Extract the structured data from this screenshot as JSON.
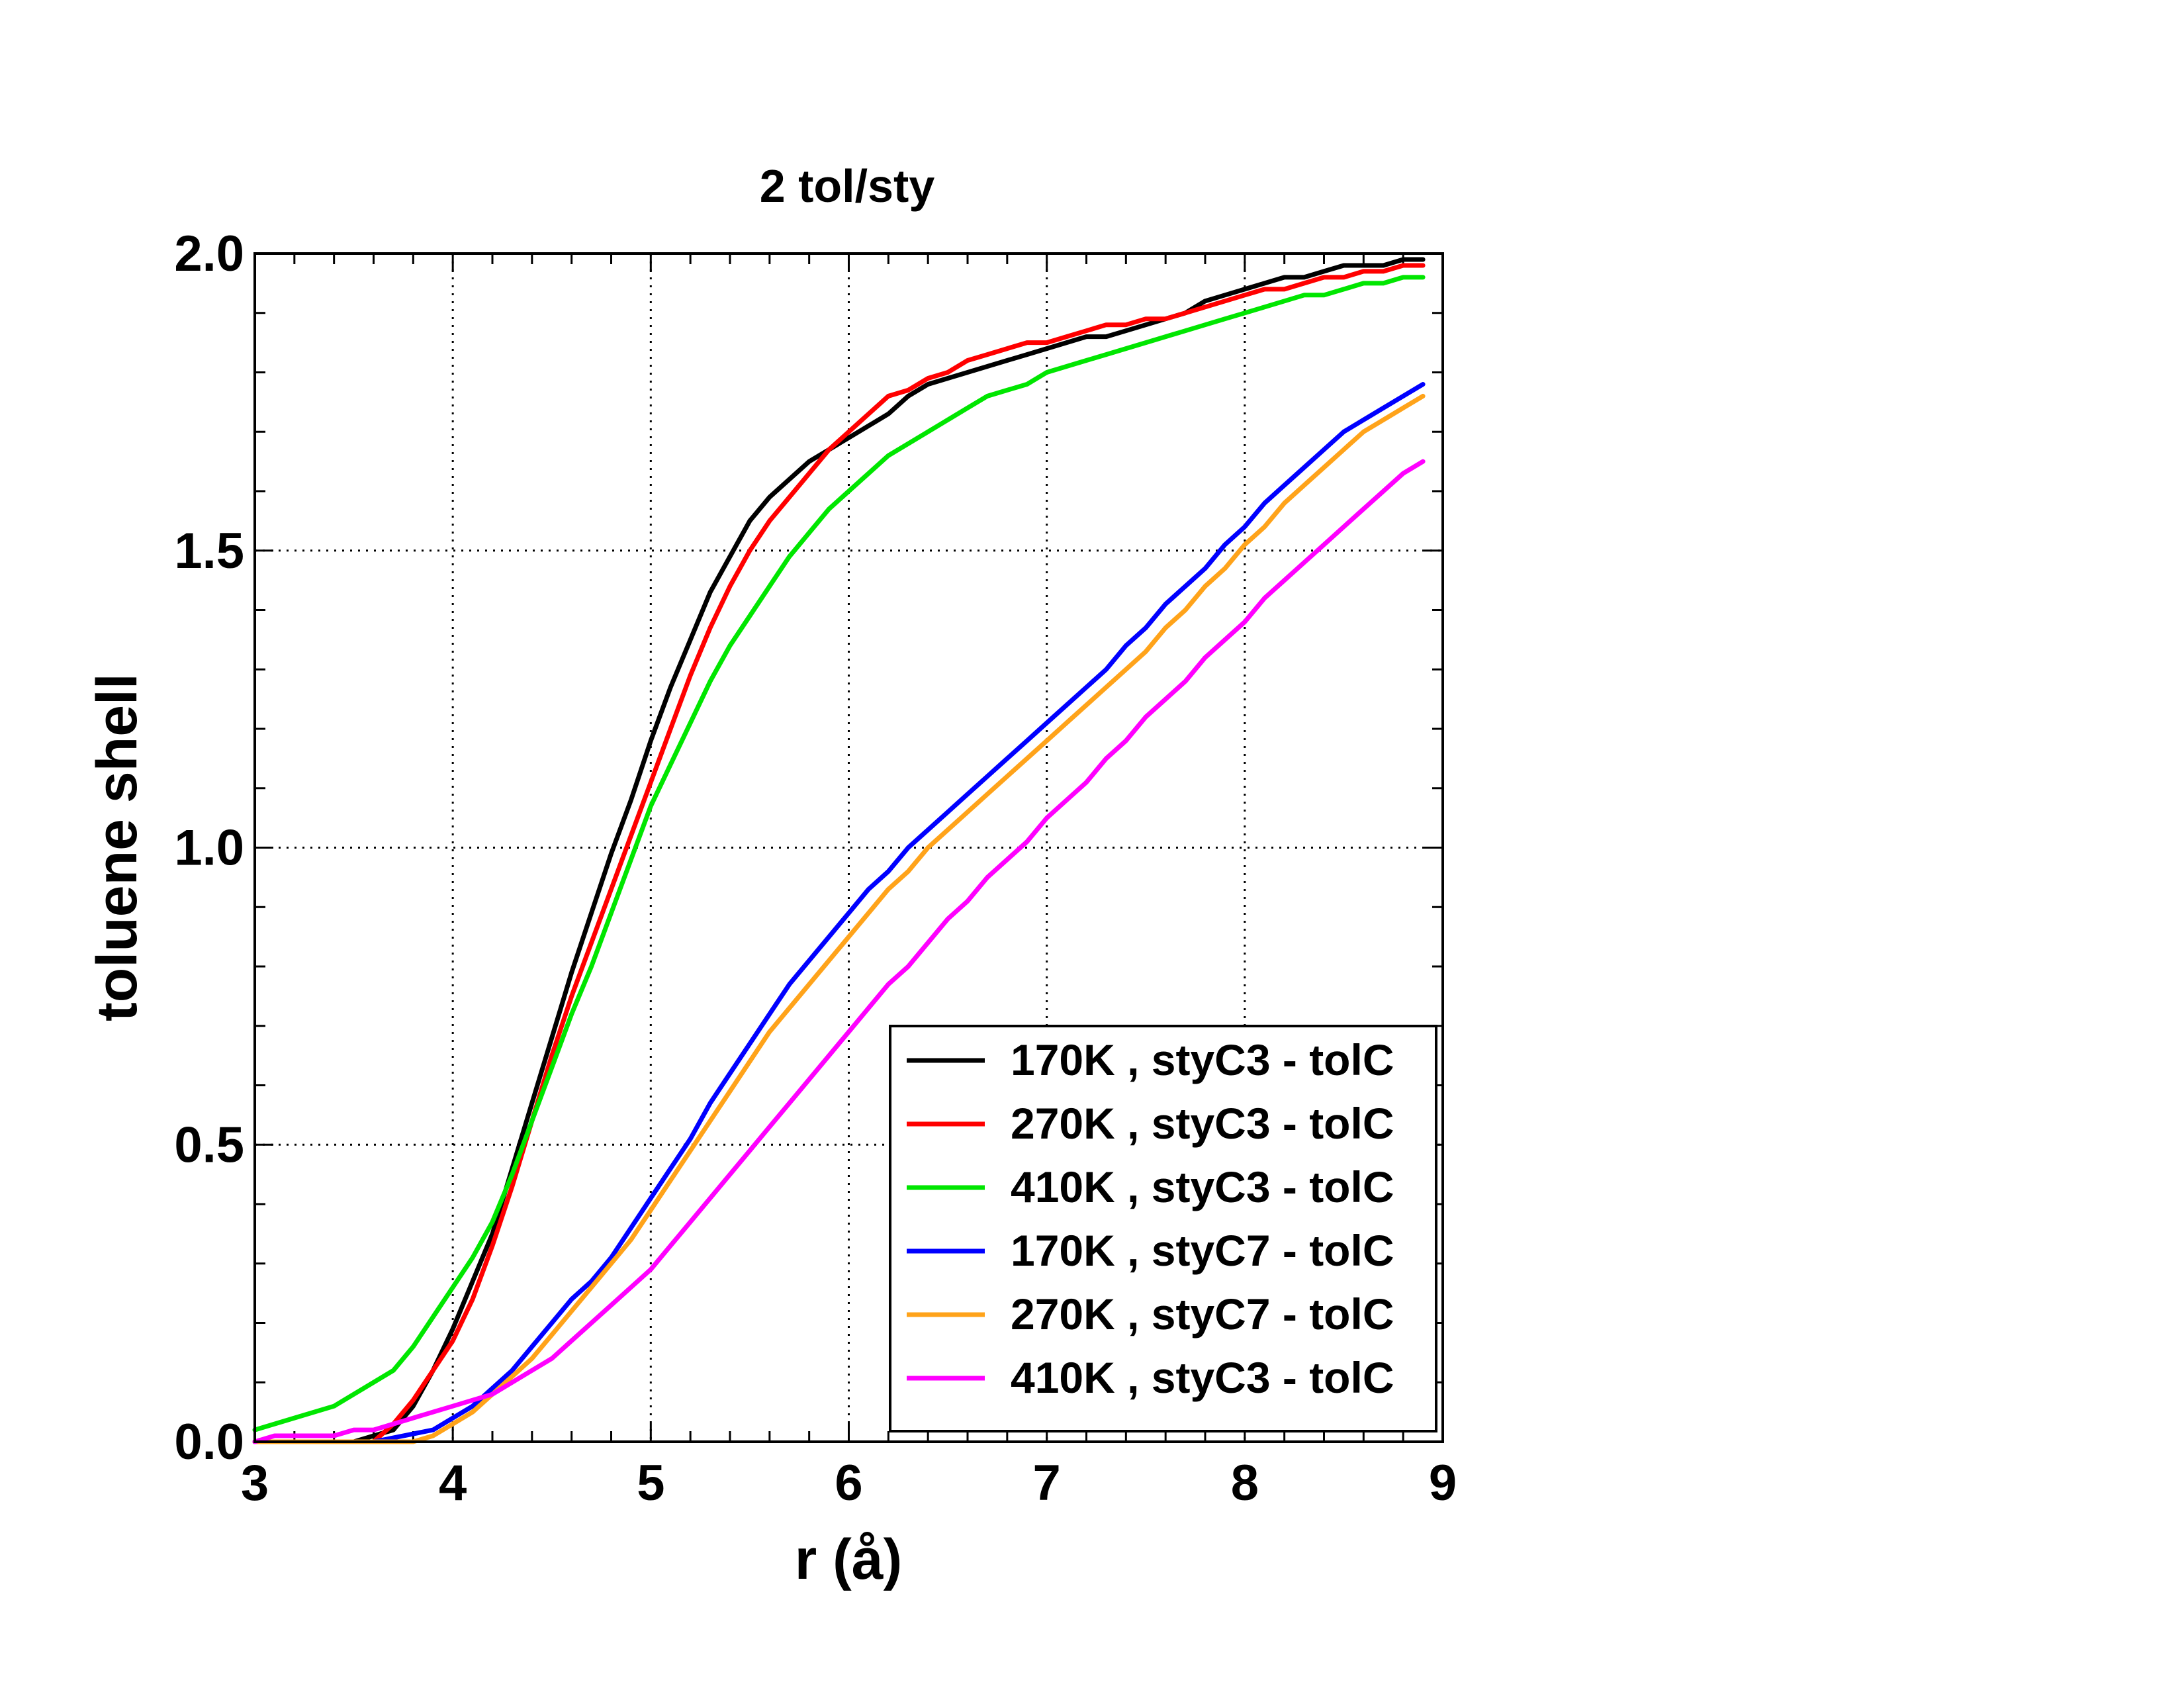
{
  "chart_data": {
    "type": "line",
    "title": "2 tol/sty",
    "xlabel": "r (å)",
    "ylabel": "toluene shell",
    "xlim": [
      3,
      9
    ],
    "ylim": [
      0,
      2.0
    ],
    "x_ticks": [
      3,
      4,
      5,
      6,
      7,
      8,
      9
    ],
    "x_tick_labels": [
      "3",
      "4",
      "5",
      "6",
      "7",
      "8",
      "9"
    ],
    "y_ticks": [
      0,
      0.5,
      1.0,
      1.5,
      2.0
    ],
    "y_tick_labels": [
      "0.0",
      "0.5",
      "1.0",
      "1.5",
      "2.0"
    ],
    "grid": "dotted",
    "legend_position": "bottom-right",
    "series": [
      {
        "name": "170K , styC3 - tolC",
        "color": "#000000",
        "x": [
          3.0,
          3.3,
          3.5,
          3.6,
          3.7,
          3.8,
          3.9,
          4.0,
          4.1,
          4.2,
          4.3,
          4.4,
          4.5,
          4.6,
          4.7,
          4.8,
          4.9,
          5.0,
          5.1,
          5.2,
          5.3,
          5.4,
          5.5,
          5.6,
          5.7,
          5.8,
          5.9,
          6.0,
          6.1,
          6.2,
          6.3,
          6.4,
          6.5,
          6.6,
          6.7,
          6.8,
          6.9,
          7.0,
          7.1,
          7.2,
          7.3,
          7.4,
          7.5,
          7.6,
          7.7,
          7.8,
          7.9,
          8.0,
          8.1,
          8.2,
          8.3,
          8.4,
          8.5,
          8.6,
          8.7,
          8.8,
          8.9
        ],
        "y": [
          0.0,
          0.0,
          0.0,
          0.01,
          0.02,
          0.06,
          0.12,
          0.19,
          0.27,
          0.35,
          0.46,
          0.57,
          0.68,
          0.79,
          0.89,
          0.99,
          1.08,
          1.18,
          1.27,
          1.35,
          1.43,
          1.49,
          1.55,
          1.59,
          1.62,
          1.65,
          1.67,
          1.69,
          1.71,
          1.73,
          1.76,
          1.78,
          1.79,
          1.8,
          1.81,
          1.82,
          1.83,
          1.84,
          1.85,
          1.86,
          1.86,
          1.87,
          1.88,
          1.89,
          1.9,
          1.92,
          1.93,
          1.94,
          1.95,
          1.96,
          1.96,
          1.97,
          1.98,
          1.98,
          1.98,
          1.99,
          1.99
        ]
      },
      {
        "name": "270K , styC3 - tolC",
        "color": "#ff0000",
        "x": [
          3.0,
          3.3,
          3.5,
          3.6,
          3.7,
          3.8,
          3.9,
          4.0,
          4.1,
          4.2,
          4.3,
          4.4,
          4.5,
          4.6,
          4.7,
          4.8,
          4.9,
          5.0,
          5.1,
          5.2,
          5.3,
          5.4,
          5.5,
          5.6,
          5.7,
          5.8,
          5.9,
          6.0,
          6.1,
          6.2,
          6.3,
          6.4,
          6.5,
          6.6,
          6.7,
          6.8,
          6.9,
          7.0,
          7.1,
          7.2,
          7.3,
          7.4,
          7.5,
          7.6,
          7.7,
          7.8,
          7.9,
          8.0,
          8.1,
          8.2,
          8.3,
          8.4,
          8.5,
          8.6,
          8.7,
          8.8,
          8.9
        ],
        "y": [
          0.0,
          0.0,
          0.0,
          0.0,
          0.03,
          0.07,
          0.12,
          0.17,
          0.24,
          0.33,
          0.43,
          0.54,
          0.65,
          0.75,
          0.84,
          0.93,
          1.02,
          1.11,
          1.2,
          1.29,
          1.37,
          1.44,
          1.5,
          1.55,
          1.59,
          1.63,
          1.67,
          1.7,
          1.73,
          1.76,
          1.77,
          1.79,
          1.8,
          1.82,
          1.83,
          1.84,
          1.85,
          1.85,
          1.86,
          1.87,
          1.88,
          1.88,
          1.89,
          1.89,
          1.9,
          1.91,
          1.92,
          1.93,
          1.94,
          1.94,
          1.95,
          1.96,
          1.96,
          1.97,
          1.97,
          1.98,
          1.98
        ]
      },
      {
        "name": "410K , styC3 - tolC",
        "color": "#00e600",
        "x": [
          3.0,
          3.2,
          3.4,
          3.6,
          3.7,
          3.8,
          3.9,
          4.0,
          4.1,
          4.2,
          4.3,
          4.4,
          4.5,
          4.6,
          4.7,
          4.8,
          4.9,
          5.0,
          5.1,
          5.2,
          5.3,
          5.4,
          5.5,
          5.6,
          5.7,
          5.8,
          5.9,
          6.0,
          6.1,
          6.2,
          6.3,
          6.4,
          6.5,
          6.6,
          6.7,
          6.8,
          6.9,
          7.0,
          7.1,
          7.2,
          7.3,
          7.4,
          7.5,
          7.6,
          7.7,
          7.8,
          7.9,
          8.0,
          8.1,
          8.2,
          8.3,
          8.4,
          8.5,
          8.6,
          8.7,
          8.8,
          8.9
        ],
        "y": [
          0.02,
          0.04,
          0.06,
          0.1,
          0.12,
          0.16,
          0.21,
          0.26,
          0.31,
          0.37,
          0.45,
          0.54,
          0.63,
          0.72,
          0.8,
          0.89,
          0.98,
          1.07,
          1.14,
          1.21,
          1.28,
          1.34,
          1.39,
          1.44,
          1.49,
          1.53,
          1.57,
          1.6,
          1.63,
          1.66,
          1.68,
          1.7,
          1.72,
          1.74,
          1.76,
          1.77,
          1.78,
          1.8,
          1.81,
          1.82,
          1.83,
          1.84,
          1.85,
          1.86,
          1.87,
          1.88,
          1.89,
          1.9,
          1.91,
          1.92,
          1.93,
          1.93,
          1.94,
          1.95,
          1.95,
          1.96,
          1.96
        ]
      },
      {
        "name": "170K , styC7 - tolC",
        "color": "#0000ff",
        "x": [
          3.0,
          3.6,
          3.9,
          4.0,
          4.1,
          4.2,
          4.3,
          4.4,
          4.5,
          4.6,
          4.7,
          4.8,
          4.9,
          5.0,
          5.1,
          5.2,
          5.3,
          5.4,
          5.5,
          5.6,
          5.7,
          5.8,
          5.9,
          6.0,
          6.1,
          6.2,
          6.3,
          6.4,
          6.5,
          6.6,
          6.7,
          6.8,
          6.9,
          7.0,
          7.1,
          7.2,
          7.3,
          7.4,
          7.5,
          7.6,
          7.7,
          7.8,
          7.9,
          8.0,
          8.1,
          8.2,
          8.3,
          8.4,
          8.5,
          8.6,
          8.7,
          8.8,
          8.9
        ],
        "y": [
          0.0,
          0.0,
          0.02,
          0.04,
          0.06,
          0.09,
          0.12,
          0.16,
          0.2,
          0.24,
          0.27,
          0.31,
          0.36,
          0.41,
          0.46,
          0.51,
          0.57,
          0.62,
          0.67,
          0.72,
          0.77,
          0.81,
          0.85,
          0.89,
          0.93,
          0.96,
          1.0,
          1.03,
          1.06,
          1.09,
          1.12,
          1.15,
          1.18,
          1.21,
          1.24,
          1.27,
          1.3,
          1.34,
          1.37,
          1.41,
          1.44,
          1.47,
          1.51,
          1.54,
          1.58,
          1.61,
          1.64,
          1.67,
          1.7,
          1.72,
          1.74,
          1.76,
          1.78
        ]
      },
      {
        "name": "270K , styC7 - tolC",
        "color": "#ffa31a",
        "x": [
          3.0,
          3.8,
          3.9,
          4.0,
          4.1,
          4.2,
          4.3,
          4.4,
          4.5,
          4.6,
          4.7,
          4.8,
          4.9,
          5.0,
          5.1,
          5.2,
          5.3,
          5.4,
          5.5,
          5.6,
          5.7,
          5.8,
          5.9,
          6.0,
          6.1,
          6.2,
          6.3,
          6.4,
          6.5,
          6.6,
          6.7,
          6.8,
          6.9,
          7.0,
          7.1,
          7.2,
          7.3,
          7.4,
          7.5,
          7.6,
          7.7,
          7.8,
          7.9,
          8.0,
          8.1,
          8.2,
          8.3,
          8.4,
          8.5,
          8.6,
          8.7,
          8.8,
          8.9
        ],
        "y": [
          0.0,
          0.0,
          0.01,
          0.03,
          0.05,
          0.08,
          0.11,
          0.14,
          0.18,
          0.22,
          0.26,
          0.3,
          0.34,
          0.39,
          0.44,
          0.49,
          0.54,
          0.59,
          0.64,
          0.69,
          0.73,
          0.77,
          0.81,
          0.85,
          0.89,
          0.93,
          0.96,
          1.0,
          1.03,
          1.06,
          1.09,
          1.12,
          1.15,
          1.18,
          1.21,
          1.24,
          1.27,
          1.3,
          1.33,
          1.37,
          1.4,
          1.44,
          1.47,
          1.51,
          1.54,
          1.58,
          1.61,
          1.64,
          1.67,
          1.7,
          1.72,
          1.74,
          1.76
        ]
      },
      {
        "name": "410K , styC3 - tolC",
        "color": "#ff00ff",
        "x": [
          3.0,
          3.1,
          3.2,
          3.3,
          3.4,
          3.5,
          3.6,
          3.7,
          3.8,
          3.9,
          4.0,
          4.1,
          4.2,
          4.3,
          4.4,
          4.5,
          4.6,
          4.7,
          4.8,
          4.9,
          5.0,
          5.1,
          5.2,
          5.3,
          5.4,
          5.5,
          5.6,
          5.7,
          5.8,
          5.9,
          6.0,
          6.1,
          6.2,
          6.3,
          6.4,
          6.5,
          6.6,
          6.7,
          6.8,
          6.9,
          7.0,
          7.1,
          7.2,
          7.3,
          7.4,
          7.5,
          7.6,
          7.7,
          7.8,
          7.9,
          8.0,
          8.1,
          8.2,
          8.3,
          8.4,
          8.5,
          8.6,
          8.7,
          8.8,
          8.9
        ],
        "y": [
          0.0,
          0.01,
          0.01,
          0.01,
          0.01,
          0.02,
          0.02,
          0.03,
          0.04,
          0.05,
          0.06,
          0.07,
          0.08,
          0.1,
          0.12,
          0.14,
          0.17,
          0.2,
          0.23,
          0.26,
          0.29,
          0.33,
          0.37,
          0.41,
          0.45,
          0.49,
          0.53,
          0.57,
          0.61,
          0.65,
          0.69,
          0.73,
          0.77,
          0.8,
          0.84,
          0.88,
          0.91,
          0.95,
          0.98,
          1.01,
          1.05,
          1.08,
          1.11,
          1.15,
          1.18,
          1.22,
          1.25,
          1.28,
          1.32,
          1.35,
          1.38,
          1.42,
          1.45,
          1.48,
          1.51,
          1.54,
          1.57,
          1.6,
          1.63,
          1.65
        ]
      }
    ]
  }
}
